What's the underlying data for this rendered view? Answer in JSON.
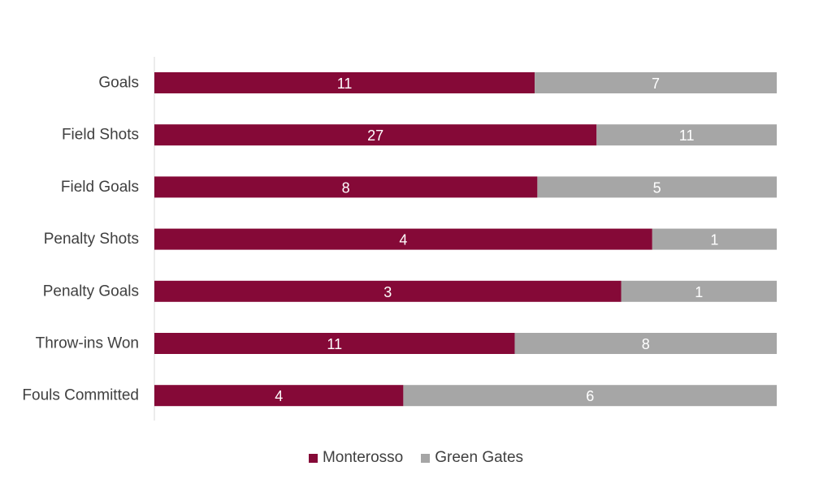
{
  "chart_data": {
    "type": "bar",
    "orientation": "horizontal",
    "stacking": "percent",
    "categories": [
      "Goals",
      "Field Shots",
      "Field Goals",
      "Penalty Shots",
      "Penalty Goals",
      "Throw-ins Won",
      "Fouls Committed"
    ],
    "series": [
      {
        "name": "Monterosso",
        "values": [
          11,
          27,
          8,
          4,
          3,
          11,
          4
        ],
        "color": "#850937"
      },
      {
        "name": "Green Gates",
        "values": [
          7,
          11,
          5,
          1,
          1,
          8,
          6
        ],
        "color": "#a6a6a6"
      }
    ],
    "legend_position": "bottom",
    "grid": false,
    "data_labels": true
  }
}
